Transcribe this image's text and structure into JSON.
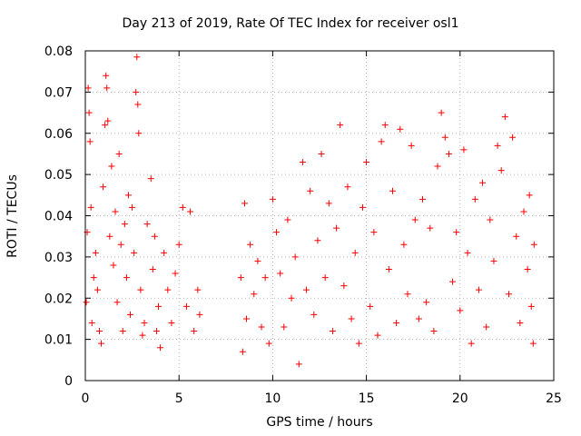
{
  "chart_data": {
    "type": "scatter",
    "title": "Day 213 of 2019, Rate Of TEC Index for receiver osl1",
    "xlabel": "GPS time / hours",
    "ylabel": "ROTI / TECUs",
    "xlim": [
      0,
      25
    ],
    "ylim": [
      0,
      0.08
    ],
    "xticks": [
      0,
      5,
      10,
      15,
      20,
      25
    ],
    "xtick_labels": [
      "0",
      "5",
      "10",
      "15",
      "20",
      "25"
    ],
    "yticks": [
      0,
      0.01,
      0.02,
      0.03,
      0.04,
      0.05,
      0.06,
      0.07,
      0.08
    ],
    "ytick_labels": [
      "0",
      "0.01",
      "0.02",
      "0.03",
      "0.04",
      "0.05",
      "0.06",
      "0.07",
      "0.08"
    ],
    "grid": true,
    "marker": "+",
    "color": "#ff0000",
    "series": [
      {
        "name": "ROTI",
        "points": [
          [
            0.05,
            0.019
          ],
          [
            0.1,
            0.036
          ],
          [
            0.15,
            0.071
          ],
          [
            0.2,
            0.065
          ],
          [
            0.25,
            0.058
          ],
          [
            0.3,
            0.042
          ],
          [
            0.35,
            0.014
          ],
          [
            0.45,
            0.025
          ],
          [
            0.55,
            0.031
          ],
          [
            0.65,
            0.022
          ],
          [
            0.75,
            0.012
          ],
          [
            0.85,
            0.009
          ],
          [
            0.95,
            0.047
          ],
          [
            1.05,
            0.062
          ],
          [
            1.1,
            0.074
          ],
          [
            1.15,
            0.071
          ],
          [
            1.2,
            0.063
          ],
          [
            1.3,
            0.035
          ],
          [
            1.4,
            0.052
          ],
          [
            1.5,
            0.028
          ],
          [
            1.6,
            0.041
          ],
          [
            1.7,
            0.019
          ],
          [
            1.8,
            0.055
          ],
          [
            1.9,
            0.033
          ],
          [
            2.0,
            0.012
          ],
          [
            2.1,
            0.038
          ],
          [
            2.2,
            0.025
          ],
          [
            2.3,
            0.045
          ],
          [
            2.4,
            0.016
          ],
          [
            2.5,
            0.042
          ],
          [
            2.6,
            0.031
          ],
          [
            2.7,
            0.07
          ],
          [
            2.75,
            0.0785
          ],
          [
            2.8,
            0.067
          ],
          [
            2.85,
            0.06
          ],
          [
            2.95,
            0.022
          ],
          [
            3.05,
            0.011
          ],
          [
            3.15,
            0.014
          ],
          [
            3.3,
            0.038
          ],
          [
            3.5,
            0.049
          ],
          [
            3.6,
            0.027
          ],
          [
            3.7,
            0.035
          ],
          [
            3.8,
            0.012
          ],
          [
            3.9,
            0.018
          ],
          [
            4.0,
            0.008
          ],
          [
            4.2,
            0.031
          ],
          [
            4.4,
            0.022
          ],
          [
            4.6,
            0.014
          ],
          [
            4.8,
            0.026
          ],
          [
            5.0,
            0.033
          ],
          [
            5.2,
            0.042
          ],
          [
            5.4,
            0.018
          ],
          [
            5.6,
            0.041
          ],
          [
            5.8,
            0.012
          ],
          [
            6.0,
            0.022
          ],
          [
            6.1,
            0.016
          ],
          [
            8.3,
            0.025
          ],
          [
            8.4,
            0.007
          ],
          [
            8.5,
            0.043
          ],
          [
            8.6,
            0.015
          ],
          [
            8.8,
            0.033
          ],
          [
            9.0,
            0.021
          ],
          [
            9.2,
            0.029
          ],
          [
            9.4,
            0.013
          ],
          [
            9.6,
            0.025
          ],
          [
            9.8,
            0.009
          ],
          [
            10.0,
            0.044
          ],
          [
            10.2,
            0.036
          ],
          [
            10.4,
            0.026
          ],
          [
            10.6,
            0.013
          ],
          [
            10.8,
            0.039
          ],
          [
            11.0,
            0.02
          ],
          [
            11.2,
            0.03
          ],
          [
            11.4,
            0.004
          ],
          [
            11.6,
            0.053
          ],
          [
            11.8,
            0.022
          ],
          [
            12.0,
            0.046
          ],
          [
            12.2,
            0.016
          ],
          [
            12.4,
            0.034
          ],
          [
            12.6,
            0.055
          ],
          [
            12.8,
            0.025
          ],
          [
            13.0,
            0.043
          ],
          [
            13.2,
            0.012
          ],
          [
            13.4,
            0.037
          ],
          [
            13.6,
            0.062
          ],
          [
            13.8,
            0.023
          ],
          [
            14.0,
            0.047
          ],
          [
            14.2,
            0.015
          ],
          [
            14.4,
            0.031
          ],
          [
            14.6,
            0.009
          ],
          [
            14.8,
            0.042
          ],
          [
            15.0,
            0.053
          ],
          [
            15.2,
            0.018
          ],
          [
            15.4,
            0.036
          ],
          [
            15.6,
            0.011
          ],
          [
            15.8,
            0.058
          ],
          [
            16.0,
            0.062
          ],
          [
            16.2,
            0.027
          ],
          [
            16.4,
            0.046
          ],
          [
            16.6,
            0.014
          ],
          [
            16.8,
            0.061
          ],
          [
            17.0,
            0.033
          ],
          [
            17.2,
            0.021
          ],
          [
            17.4,
            0.057
          ],
          [
            17.6,
            0.039
          ],
          [
            17.8,
            0.015
          ],
          [
            18.0,
            0.044
          ],
          [
            18.2,
            0.019
          ],
          [
            18.4,
            0.037
          ],
          [
            18.6,
            0.012
          ],
          [
            18.8,
            0.052
          ],
          [
            19.0,
            0.065
          ],
          [
            19.2,
            0.059
          ],
          [
            19.4,
            0.055
          ],
          [
            19.6,
            0.024
          ],
          [
            19.8,
            0.036
          ],
          [
            20.0,
            0.017
          ],
          [
            20.2,
            0.056
          ],
          [
            20.4,
            0.031
          ],
          [
            20.6,
            0.009
          ],
          [
            20.8,
            0.044
          ],
          [
            21.0,
            0.022
          ],
          [
            21.2,
            0.048
          ],
          [
            21.4,
            0.013
          ],
          [
            21.6,
            0.039
          ],
          [
            21.8,
            0.029
          ],
          [
            22.0,
            0.057
          ],
          [
            22.2,
            0.051
          ],
          [
            22.4,
            0.064
          ],
          [
            22.6,
            0.021
          ],
          [
            22.8,
            0.059
          ],
          [
            23.0,
            0.035
          ],
          [
            23.2,
            0.014
          ],
          [
            23.4,
            0.041
          ],
          [
            23.6,
            0.027
          ],
          [
            23.7,
            0.045
          ],
          [
            23.8,
            0.018
          ],
          [
            23.9,
            0.009
          ],
          [
            23.95,
            0.033
          ]
        ]
      }
    ]
  }
}
